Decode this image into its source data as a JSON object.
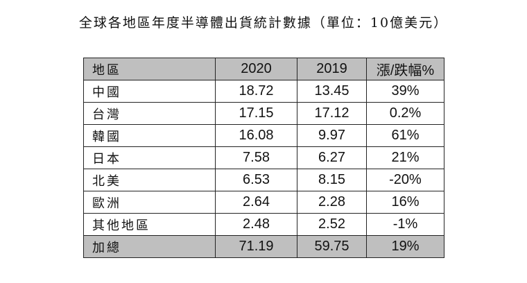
{
  "title": "全球各地區年度半導體出貨統計數據（單位：10億美元）",
  "table": {
    "headers": [
      "地區",
      "2020",
      "2019",
      "漲/跌幅%"
    ],
    "rows": [
      [
        "中國",
        "18.72",
        "13.45",
        "39%"
      ],
      [
        "台灣",
        "17.15",
        "17.12",
        "0.2%"
      ],
      [
        "韓國",
        "16.08",
        "9.97",
        "61%"
      ],
      [
        "日本",
        "7.58",
        "6.27",
        "21%"
      ],
      [
        "北美",
        "6.53",
        "8.15",
        "-20%"
      ],
      [
        "歐洲",
        "2.64",
        "2.28",
        "16%"
      ],
      [
        "其他地區",
        "2.48",
        "2.52",
        "-1%"
      ]
    ],
    "total": [
      "加總",
      "71.19",
      "59.75",
      "19%"
    ]
  },
  "colors": {
    "header_fill": "#bfbfbf",
    "total_fill": "#bfbfbf",
    "border": "#222222",
    "text": "#111111"
  }
}
